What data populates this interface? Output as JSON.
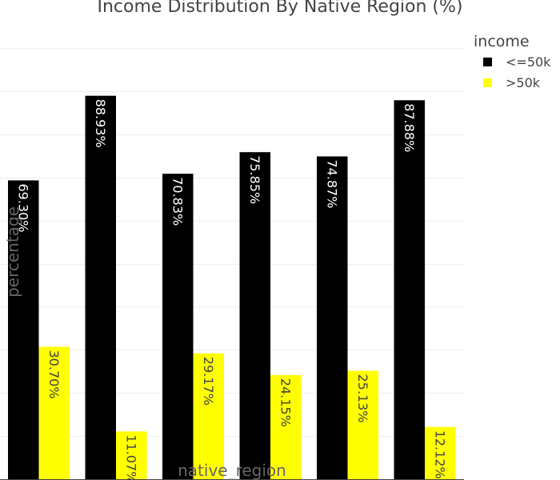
{
  "chart_data": {
    "type": "bar",
    "title": "Income Distribution By Native Region (%)",
    "xlabel": "native_region",
    "ylabel": "percentage",
    "categories": [
      "",
      "",
      "",
      "",
      "",
      ""
    ],
    "series": [
      {
        "name": "<=50k",
        "color": "#000000",
        "label_color": "#ffffff",
        "values": [
          69.3,
          88.93,
          70.83,
          75.85,
          74.87,
          87.88
        ],
        "labels": [
          "69.30%",
          "88.93%",
          "70.83%",
          "75.85%",
          "74.87%",
          "87.88%"
        ]
      },
      {
        "name": ">50k",
        "color": "#ffff00",
        "label_color": "#444444",
        "values": [
          30.7,
          11.07,
          29.17,
          24.15,
          25.13,
          12.12
        ],
        "labels": [
          "30.70%",
          "11.07%",
          "29.17%",
          "24.15%",
          "25.13%",
          "12.12%"
        ]
      }
    ],
    "ylim": [
      0,
      100
    ],
    "grid": true,
    "legend": {
      "title": "income",
      "position": "top-right"
    }
  }
}
